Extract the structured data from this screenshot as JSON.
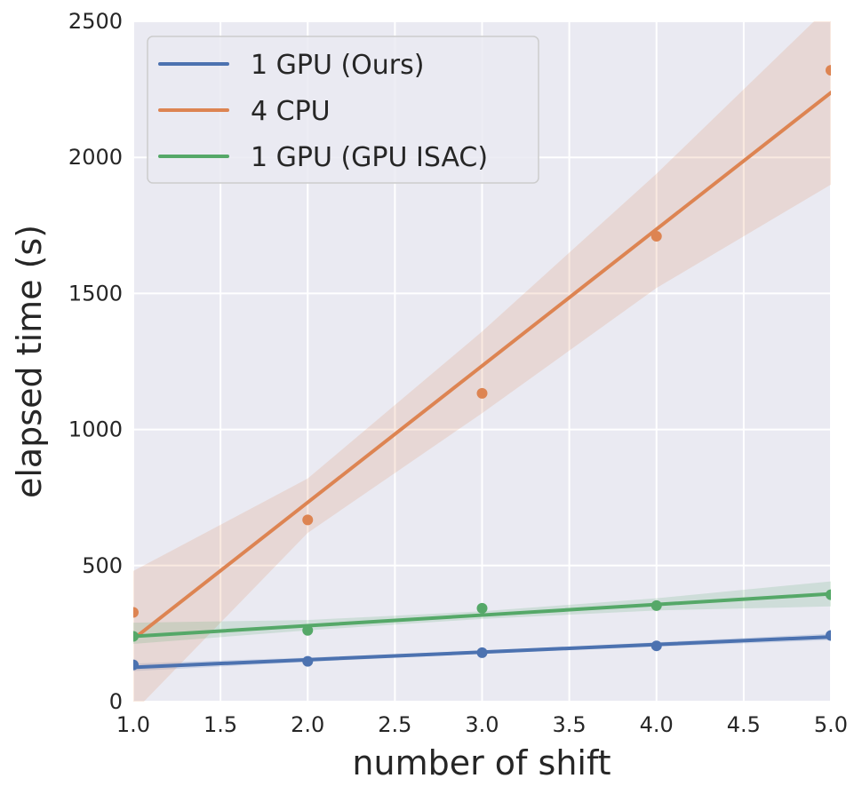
{
  "chart_data": {
    "type": "line",
    "xlabel": "number of shift",
    "ylabel": "elapsed time (s)",
    "xlim": [
      1.0,
      5.0
    ],
    "ylim": [
      0,
      2500
    ],
    "xticks": [
      1.0,
      1.5,
      2.0,
      2.5,
      3.0,
      3.5,
      4.0,
      4.5,
      5.0
    ],
    "xtick_labels": [
      "1.0",
      "1.5",
      "2.0",
      "2.5",
      "3.0",
      "3.5",
      "4.0",
      "4.5",
      "5.0"
    ],
    "yticks": [
      0,
      500,
      1000,
      1500,
      2000,
      2500
    ],
    "ytick_labels": [
      "0",
      "500",
      "1000",
      "1500",
      "2000",
      "2500"
    ],
    "grid": true,
    "legend_position": "top-left",
    "series": [
      {
        "name": "1 GPU (Ours)",
        "color": "#4c72b0",
        "x": [
          1,
          2,
          3,
          4,
          5
        ],
        "points": [
          135,
          148,
          180,
          205,
          243
        ],
        "fit": [
          126,
          154,
          182,
          210,
          238
        ],
        "band_lower": [
          112,
          146,
          176,
          202,
          226
        ],
        "band_upper": [
          140,
          162,
          188,
          218,
          250
        ]
      },
      {
        "name": "4 CPU",
        "color": "#dd8452",
        "x": [
          1,
          2,
          3,
          4,
          5
        ],
        "points": [
          328,
          668,
          1133,
          1710,
          2320
        ],
        "fit": [
          230,
          732,
          1234,
          1736,
          2238
        ],
        "band_lower": [
          -40,
          620,
          1060,
          1520,
          1900
        ],
        "band_upper": [
          480,
          820,
          1360,
          1940,
          2560
        ]
      },
      {
        "name": "1 GPU (GPU ISAC)",
        "color": "#55a868",
        "x": [
          1,
          2,
          3,
          4,
          5
        ],
        "points": [
          240,
          262,
          343,
          353,
          393
        ],
        "fit": [
          240,
          279,
          318,
          357,
          396
        ],
        "band_lower": [
          212,
          262,
          304,
          335,
          350
        ],
        "band_upper": [
          290,
          300,
          332,
          380,
          442
        ]
      }
    ]
  }
}
